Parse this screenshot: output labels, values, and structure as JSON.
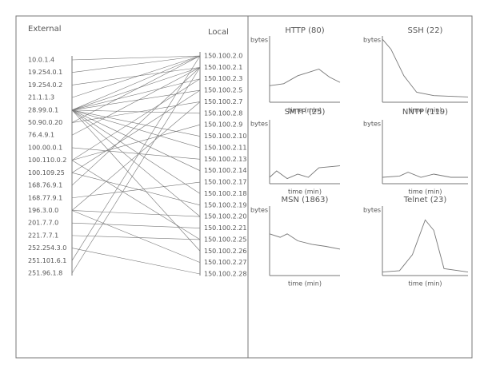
{
  "left_panel": {
    "external_label": "External",
    "local_label": "Local",
    "external": [
      "10.0.1.4",
      "19.254.0.1",
      "19.254.0.2",
      "21.1.1.3",
      "28.99.0.1",
      "50.90.0.20",
      "76.4.9.1",
      "100.00.0.1",
      "100.110.0.2",
      "100.109.25",
      "168.76.9.1",
      "168.77.9.1",
      "196.3.0.0",
      "201.7.7.0",
      "221.7.7.1",
      "252.254.3.0",
      "251.101.6.1",
      "251.96.1.8"
    ],
    "local": [
      "150.100.2.0",
      "150.100.2.1",
      "150.100.2.3",
      "150.100.2.5",
      "150.100.2.7",
      "150.100.2.8",
      "150.100.2.9",
      "150.100.2.10",
      "150.100.2.11",
      "150.100.2.13",
      "150.100.2.14",
      "150.100.2.17",
      "150.100.2.18",
      "150.100.2.19",
      "150.100.2.20",
      "150.100.2.21",
      "150.100.2.25",
      "150.100.2.26",
      "150.100.2.27",
      "150.100.2.28"
    ]
  },
  "charts": [
    {
      "title": "HTTP (80)",
      "y_label": "bytes",
      "x_label": "time (min)"
    },
    {
      "title": "SSH (22)",
      "y_label": "bytes",
      "x_label": "time (min)"
    },
    {
      "title": "SMTP (25)",
      "y_label": "bytes",
      "x_label": "time (min)"
    },
    {
      "title": "NNTP (119)",
      "y_label": "bytes",
      "x_label": "time (min)"
    },
    {
      "title": "MSN (1863)",
      "y_label": "bytes",
      "x_label": "time (min)"
    },
    {
      "title": "Telnet (23)",
      "y_label": "bytes",
      "x_label": "time (min)"
    }
  ]
}
